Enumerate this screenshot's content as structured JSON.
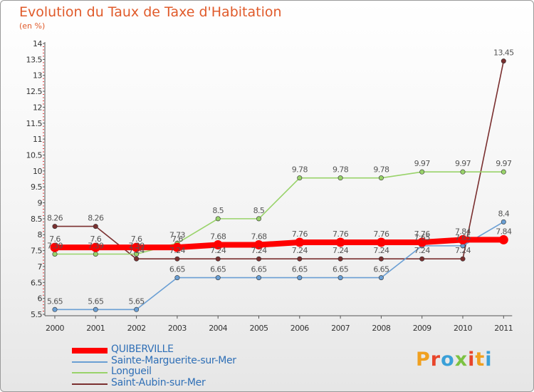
{
  "title": "Evolution du Taux de Taxe d'Habitation",
  "subtitle": "(en %)",
  "logo": {
    "text": "Proxiti",
    "colors": [
      "#f0a020",
      "#e8452b",
      "#3aa0d8",
      "#7cc242",
      "#e8452b",
      "#f0a020",
      "#3aa0d8"
    ]
  },
  "chart_data": {
    "type": "line",
    "x": [
      "2000",
      "2001",
      "2002",
      "2003",
      "2004",
      "2005",
      "2006",
      "2007",
      "2008",
      "2009",
      "2010",
      "2011"
    ],
    "ylim": [
      5.5,
      14
    ],
    "yticks": [
      "5.5",
      "6",
      "6.5",
      "7",
      "7.5",
      "8",
      "8.5",
      "9",
      "9.5",
      "10",
      "10.5",
      "11",
      "11.5",
      "12",
      "12.5",
      "13",
      "13.5",
      "14"
    ],
    "grid": false,
    "legend_position": "bottom-left",
    "series": [
      {
        "name": "QUIBERVILLE",
        "color": "#ff0000",
        "style": "thick",
        "values": [
          7.6,
          7.6,
          7.6,
          7.6,
          7.68,
          7.68,
          7.76,
          7.76,
          7.76,
          7.76,
          7.84,
          7.84
        ],
        "labels": [
          "7.6",
          "7.6",
          "7.6",
          "7.6",
          "7.68",
          "7.68",
          "7.76",
          "7.76",
          "7.76",
          "7.76",
          "7.84",
          "7.84"
        ]
      },
      {
        "name": "Sainte-Marguerite-sur-Mer",
        "color": "#6a9fd4",
        "style": "thin",
        "values": [
          5.65,
          5.65,
          5.65,
          6.65,
          6.65,
          6.65,
          6.65,
          6.65,
          6.65,
          7.65,
          7.65,
          8.4
        ],
        "labels": [
          "5.65",
          "5.65",
          "5.65",
          "6.65",
          "6.65",
          "6.65",
          "6.65",
          "6.65",
          "6.65",
          "7.65",
          "7.65",
          "8.4"
        ]
      },
      {
        "name": "Longueil",
        "color": "#99d36a",
        "style": "thin",
        "values": [
          7.39,
          7.39,
          7.39,
          7.73,
          8.5,
          8.5,
          9.78,
          9.78,
          9.78,
          9.97,
          9.97,
          9.97
        ],
        "labels": [
          "7.39",
          "7.39",
          "7.39",
          "7.73",
          "8.5",
          "8.5",
          "9.78",
          "9.78",
          "9.78",
          "9.97",
          "9.97",
          "9.97"
        ]
      },
      {
        "name": "Saint-Aubin-sur-Mer",
        "color": "#7a2f2f",
        "style": "thin",
        "values": [
          8.26,
          8.26,
          7.24,
          7.24,
          7.24,
          7.24,
          7.24,
          7.24,
          7.24,
          7.24,
          7.24,
          13.45
        ],
        "labels": [
          "8.26",
          "8.26",
          "7.24",
          "7.24",
          "7.24",
          "7.24",
          "7.24",
          "7.24",
          "7.24",
          "7.24",
          "7.24",
          "13.45"
        ]
      }
    ]
  }
}
